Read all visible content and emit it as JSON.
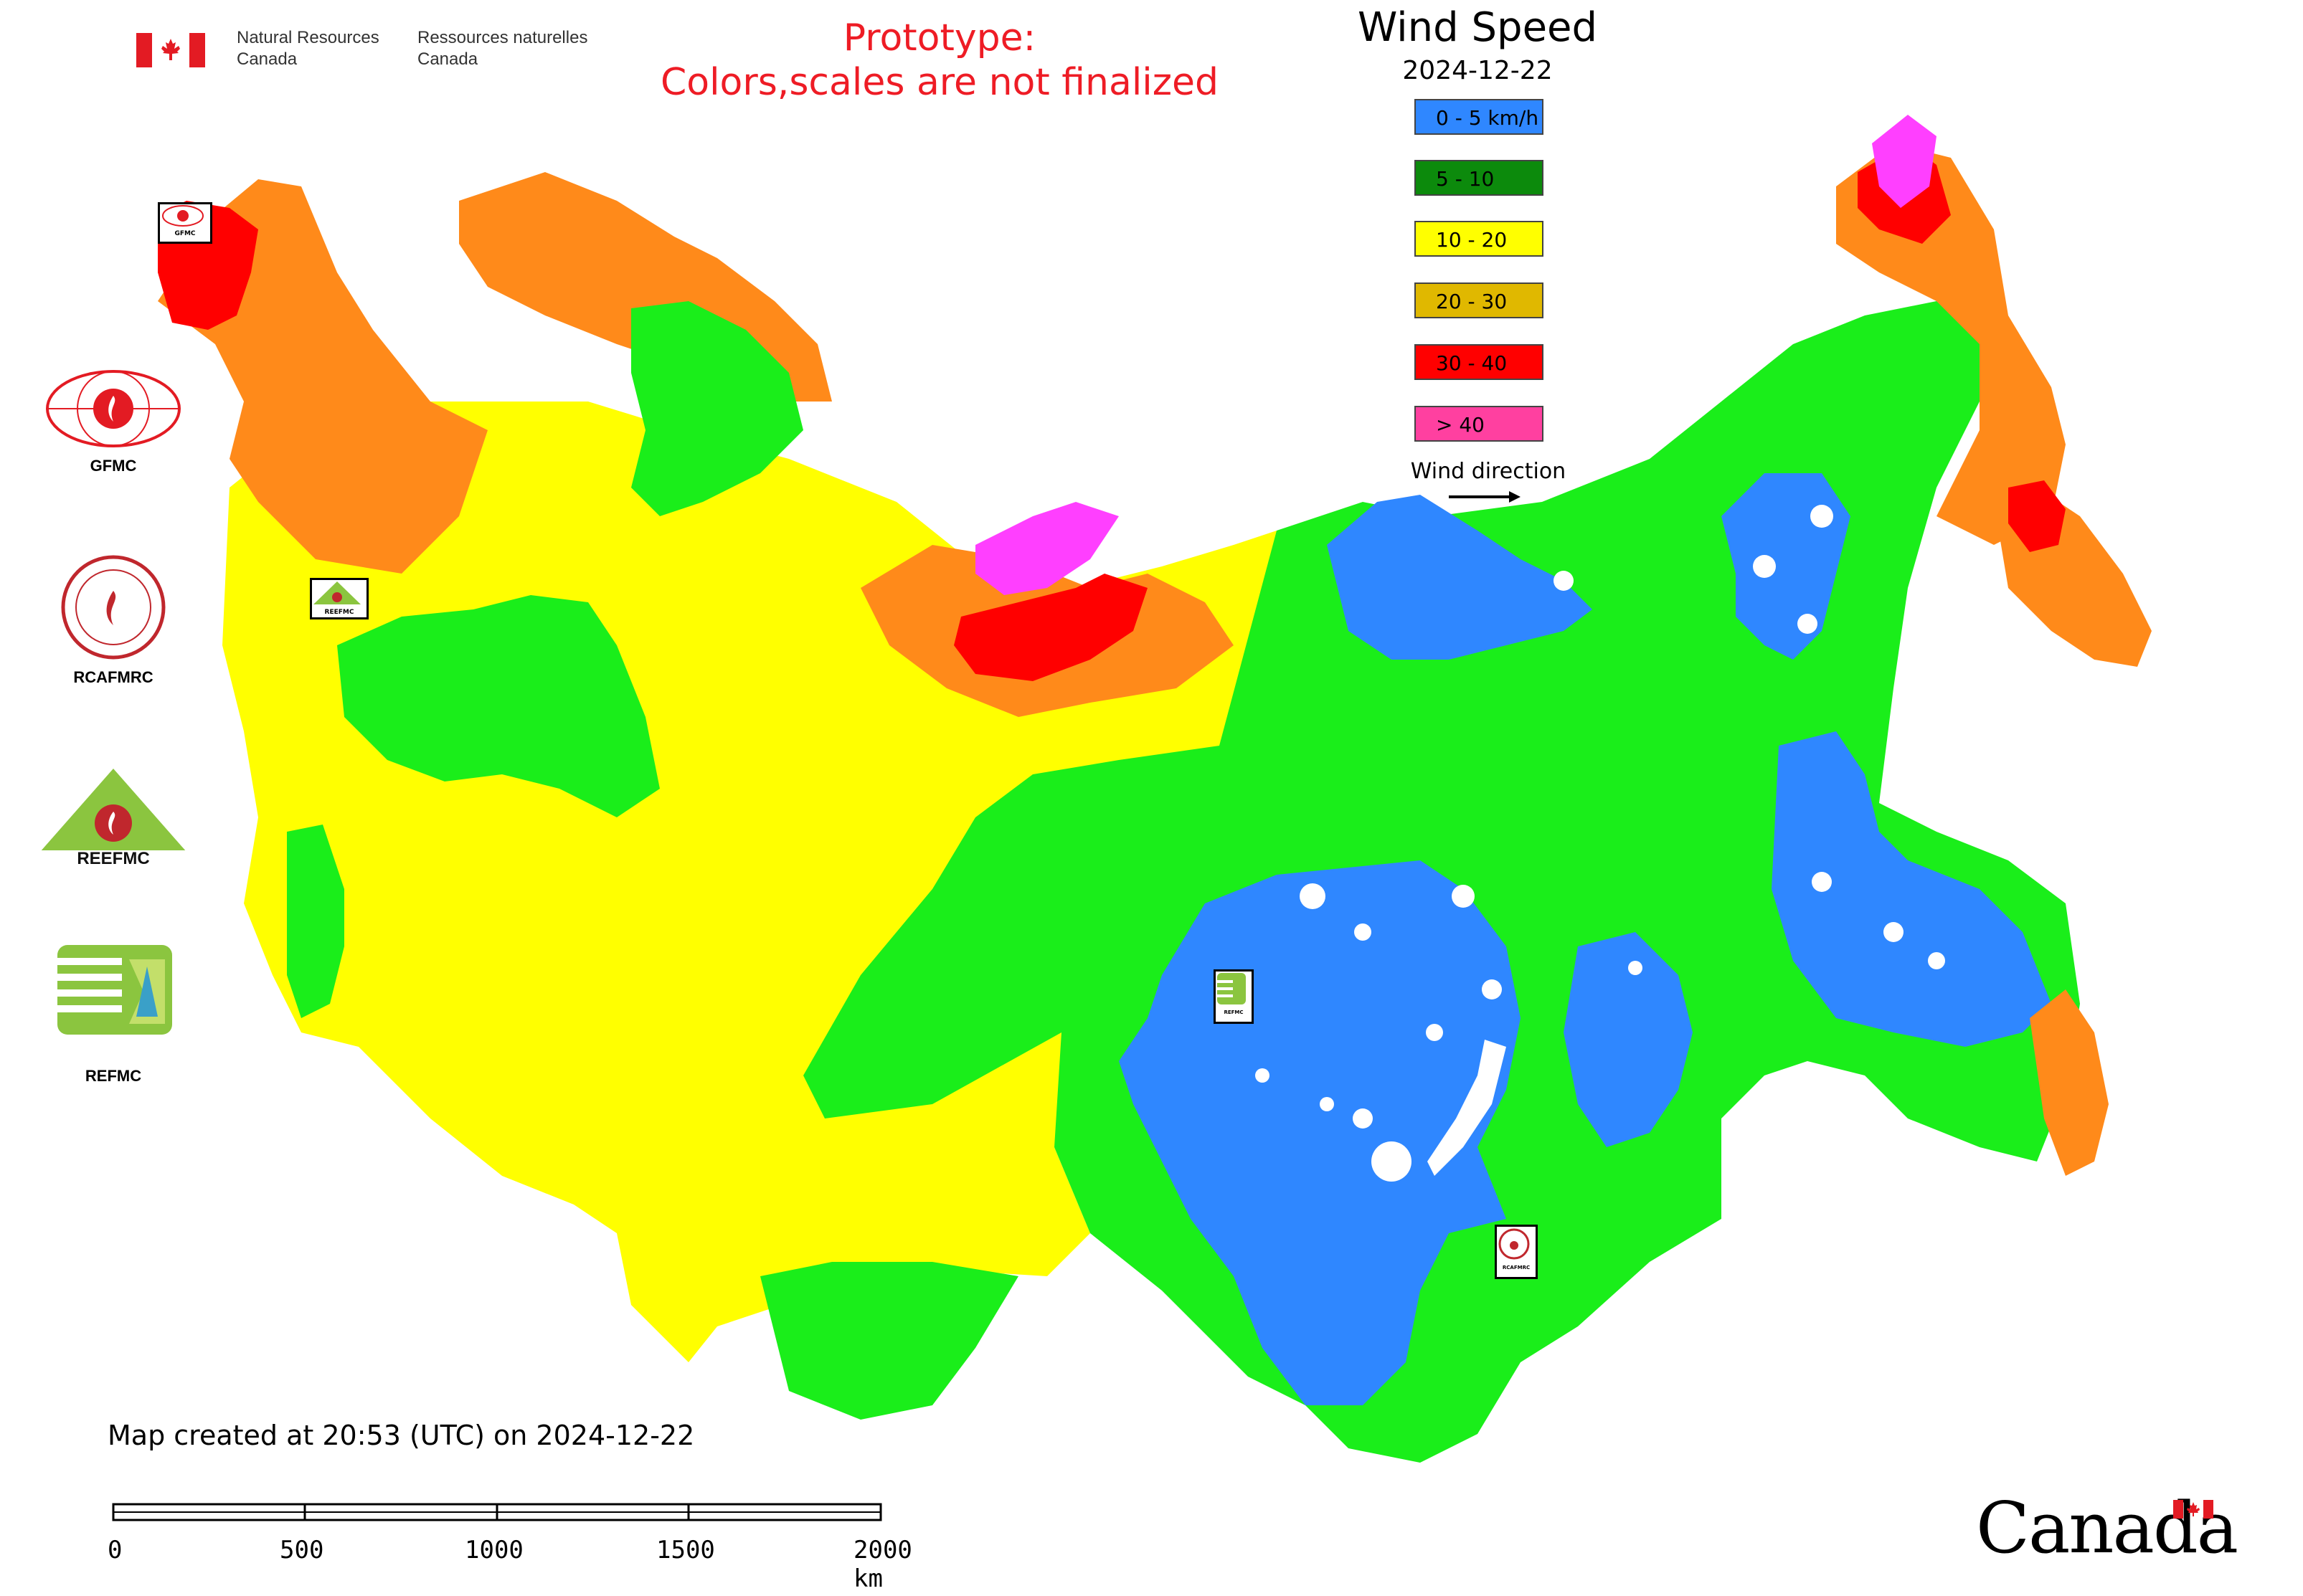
{
  "header": {
    "org_en": [
      "Natural Resources",
      "Canada"
    ],
    "org_fr": [
      "Ressources naturelles",
      "Canada"
    ],
    "prototype_notice": [
      "Prototype:",
      "Colors,scales are not finalized"
    ]
  },
  "map": {
    "title": "Wind Speed",
    "date": "2024-12-22"
  },
  "legend": [
    {
      "label": "0 - 5 km/h",
      "color": "#2f87ff"
    },
    {
      "label": "5 - 10",
      "color": "#0c8a0c"
    },
    {
      "label": "10 - 20",
      "color": "#ffff00"
    },
    {
      "label": "20 - 30",
      "color": "#e0b800"
    },
    {
      "label": "30 - 40",
      "color": "#ff0000"
    },
    {
      "label": "> 40",
      "color": "#ff40a0"
    }
  ],
  "wind_direction_label": "Wind direction",
  "logos": [
    {
      "label": "GFMC",
      "icon": "gfmc-logo"
    },
    {
      "label": "RCAFMRC",
      "icon": "rcafmrc-logo"
    },
    {
      "label": "",
      "icon": "reefmc-logo"
    },
    {
      "label": "REFMC",
      "icon": "refmc-logo"
    }
  ],
  "reefmc_wordmark": "REEFMC",
  "map_marker_labels": [
    "GFMC",
    "RCAFMRC",
    "REEFMC",
    "REFMC"
  ],
  "footer": {
    "created": "Map created at 20:53 (UTC) on 2024-12-22",
    "scale_labels": [
      "0",
      "500",
      "1000",
      "1500",
      "2000 km"
    ],
    "wordmark": "Canada"
  },
  "colors": {
    "zone_blue": "#2f87ff",
    "zone_green": "#1aee1a",
    "zone_yellow": "#ffff00",
    "zone_orange": "#ff8a1a",
    "zone_red": "#ff0000",
    "zone_magenta": "#ff3fff",
    "notice_red": "#ee1c25"
  }
}
